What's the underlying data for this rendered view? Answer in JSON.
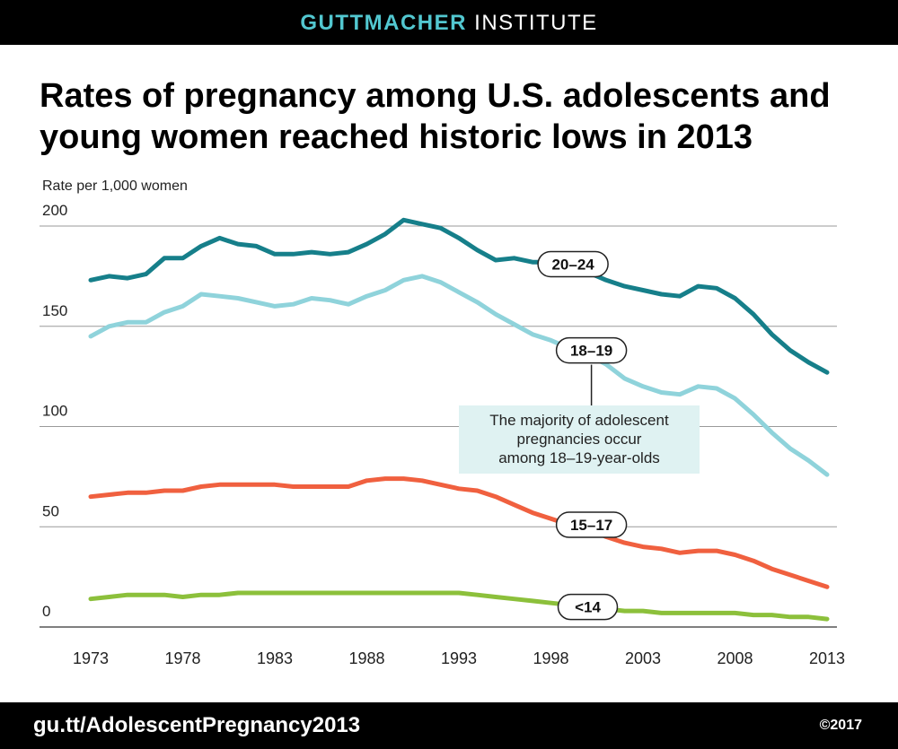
{
  "header": {
    "brand_part1": "GUTTMACHER",
    "brand_part2": "INSTITUTE"
  },
  "footer": {
    "url": "gu.tt/AdolescentPregnancy2013",
    "copyright": "©2017"
  },
  "colors": {
    "s2024": "#167f8a",
    "s1819": "#8fd3db",
    "s1517": "#f0603f",
    "s14": "#8cc03b",
    "annotation_bg": "#dff2f2",
    "grid": "#9a9a9a"
  },
  "chart_data": {
    "type": "line",
    "title": "Rates of pregnancy among U.S. adolescents and young women reached historic lows in 2013",
    "ylabel": "Rate per 1,000 women",
    "xlabel": "",
    "ylim": [
      0,
      200
    ],
    "yticks": [
      0,
      50,
      100,
      150,
      200
    ],
    "xticks": [
      1973,
      1978,
      1983,
      1988,
      1993,
      1998,
      2003,
      2008,
      2013
    ],
    "grid": true,
    "x": [
      1973,
      1974,
      1975,
      1976,
      1977,
      1978,
      1979,
      1980,
      1981,
      1982,
      1983,
      1984,
      1985,
      1986,
      1987,
      1988,
      1989,
      1990,
      1991,
      1992,
      1993,
      1994,
      1995,
      1996,
      1997,
      1998,
      1999,
      2000,
      2001,
      2002,
      2003,
      2004,
      2005,
      2006,
      2007,
      2008,
      2009,
      2010,
      2011,
      2012,
      2013
    ],
    "series": [
      {
        "name": "20–24",
        "color_key": "s2024",
        "values": [
          173,
          175,
          174,
          176,
          184,
          184,
          190,
          194,
          191,
          190,
          186,
          186,
          187,
          186,
          187,
          191,
          196,
          203,
          201,
          199,
          194,
          188,
          183,
          184,
          182,
          182,
          179,
          177,
          173,
          170,
          168,
          166,
          165,
          170,
          169,
          164,
          156,
          146,
          138,
          132,
          127
        ]
      },
      {
        "name": "18–19",
        "color_key": "s1819",
        "values": [
          145,
          150,
          152,
          152,
          157,
          160,
          166,
          165,
          164,
          162,
          160,
          161,
          164,
          163,
          161,
          165,
          168,
          173,
          175,
          172,
          167,
          162,
          156,
          151,
          146,
          143,
          139,
          136,
          131,
          124,
          120,
          117,
          116,
          120,
          119,
          114,
          106,
          97,
          89,
          83,
          76
        ]
      },
      {
        "name": "15–17",
        "color_key": "s1517",
        "values": [
          65,
          66,
          67,
          67,
          68,
          68,
          70,
          71,
          71,
          71,
          71,
          70,
          70,
          70,
          70,
          73,
          74,
          74,
          73,
          71,
          69,
          68,
          65,
          61,
          57,
          54,
          51,
          49,
          45,
          42,
          40,
          39,
          37,
          38,
          38,
          36,
          33,
          29,
          26,
          23,
          20
        ]
      },
      {
        "name": "<14",
        "color_key": "s14",
        "values": [
          14,
          15,
          16,
          16,
          16,
          15,
          16,
          16,
          17,
          17,
          17,
          17,
          17,
          17,
          17,
          17,
          17,
          17,
          17,
          17,
          17,
          16,
          15,
          14,
          13,
          12,
          11,
          10,
          9,
          8,
          8,
          7,
          7,
          7,
          7,
          7,
          6,
          6,
          5,
          5,
          4
        ]
      }
    ],
    "series_labels": [
      {
        "text": "20–24",
        "x": 1999.2,
        "y": 181
      },
      {
        "text": "18–19",
        "x": 2000.2,
        "y": 138
      },
      {
        "text": "15–17",
        "x": 2000.2,
        "y": 51
      },
      {
        "text": "<14",
        "x": 2000.0,
        "y": 10
      }
    ],
    "annotation": {
      "lines": [
        "The majority of adolescent",
        "pregnancies occur",
        "among 18–19-year-olds"
      ],
      "anchor_x": 2000.2,
      "anchor_y": 138
    }
  }
}
